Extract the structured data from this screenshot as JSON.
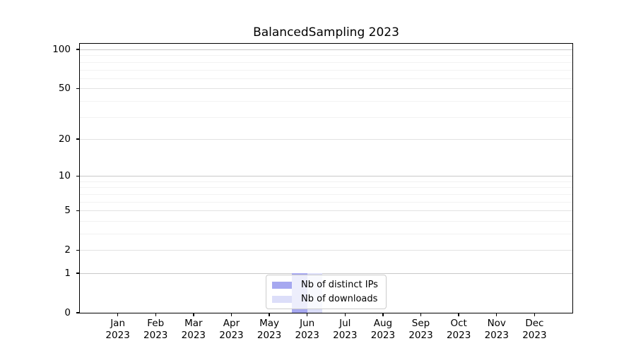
{
  "chart_data": {
    "type": "bar",
    "title": "BalancedSampling 2023",
    "categories": [
      "Jan",
      "Feb",
      "Mar",
      "Apr",
      "May",
      "Jun",
      "Jul",
      "Aug",
      "Sep",
      "Oct",
      "Nov",
      "Dec"
    ],
    "year_label": "2023",
    "series": [
      {
        "name": "Nb of distinct IPs",
        "color": "#a6a8f0",
        "values": [
          0,
          0,
          0,
          0,
          0,
          1,
          0,
          0,
          0,
          0,
          0,
          0
        ]
      },
      {
        "name": "Nb of downloads",
        "color": "#dcdef9",
        "values": [
          0,
          0,
          0,
          0,
          0,
          1,
          0,
          0,
          0,
          0,
          0,
          0
        ]
      }
    ],
    "yscale": "log1p",
    "ylim": [
      0,
      110.6
    ],
    "yticks": [
      0,
      1,
      2,
      5,
      10,
      20,
      50,
      100
    ],
    "yticks_minor": [
      3,
      4,
      6,
      7,
      8,
      9,
      30,
      40,
      60,
      70,
      80,
      90
    ],
    "grid": "horizontal",
    "legend": {
      "position": "lower-center-inside"
    }
  }
}
